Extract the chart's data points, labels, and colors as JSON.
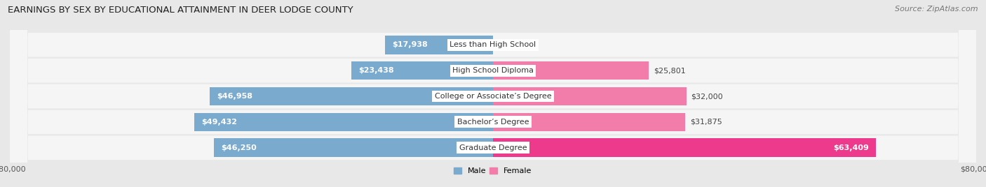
{
  "title": "EARNINGS BY SEX BY EDUCATIONAL ATTAINMENT IN DEER LODGE COUNTY",
  "source": "Source: ZipAtlas.com",
  "categories": [
    "Less than High School",
    "High School Diploma",
    "College or Associate’s Degree",
    "Bachelor’s Degree",
    "Graduate Degree"
  ],
  "male_values": [
    17938,
    23438,
    46958,
    49432,
    46250
  ],
  "female_values": [
    0,
    25801,
    32000,
    31875,
    63409
  ],
  "male_color": "#7baacf",
  "female_color": "#f27caa",
  "female_highlight_color": "#ee3a8c",
  "max_val": 80000,
  "bg_color": "#e8e8e8",
  "row_bg_color": "#f5f5f5",
  "bar_row_color": "#ffffff",
  "title_fontsize": 9.5,
  "label_fontsize": 8.0,
  "axis_fontsize": 8.0,
  "source_fontsize": 8.0
}
